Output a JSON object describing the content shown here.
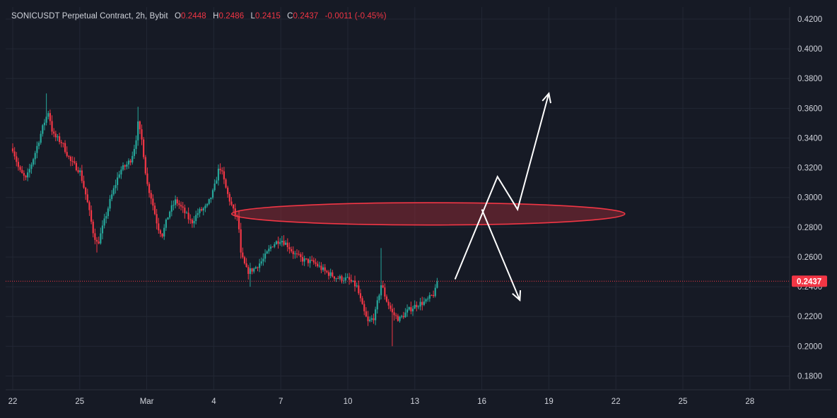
{
  "header": {
    "symbol": "SONICUSDT Perpetual Contract, 2h, Bybit",
    "open_label": "O",
    "open": "0.2448",
    "high_label": "H",
    "high": "0.2486",
    "low_label": "L",
    "low": "0.2415",
    "close_label": "C",
    "close": "0.2437",
    "change": "-0.0011 (-0.45%)"
  },
  "colors": {
    "background": "#161a25",
    "grid": "#222734",
    "up": "#26a69a",
    "down": "#f23645",
    "text": "#d1d4dc",
    "arrow": "#ffffff",
    "zone_fill": "#8a2a35",
    "zone_stroke": "#f23645"
  },
  "chart_data": {
    "type": "candlestick",
    "y_axis_side": "right",
    "ylim": [
      0.17,
      0.425
    ],
    "y_ticks": [
      "0.4200",
      "0.4000",
      "0.3800",
      "0.3600",
      "0.3400",
      "0.3200",
      "0.3000",
      "0.2800",
      "0.2600",
      "0.2400",
      "0.2200",
      "0.2000",
      "0.1800"
    ],
    "x_ticks": [
      "22",
      "25",
      "Mar",
      "4",
      "7",
      "10",
      "13",
      "16",
      "19",
      "22",
      "25",
      "28"
    ],
    "x_tick_days": [
      0,
      3,
      6,
      9,
      12,
      15,
      18,
      21,
      24,
      27,
      30,
      33
    ],
    "last_price": "0.2437",
    "last_price_value": 0.2437,
    "price_path": [
      [
        0.0,
        0.333
      ],
      [
        0.3,
        0.318
      ],
      [
        0.6,
        0.312
      ],
      [
        1.0,
        0.33
      ],
      [
        1.3,
        0.345
      ],
      [
        1.4,
        0.35
      ],
      [
        1.6,
        0.358
      ],
      [
        1.8,
        0.342
      ],
      [
        2.2,
        0.337
      ],
      [
        2.6,
        0.324
      ],
      [
        3.0,
        0.318
      ],
      [
        3.3,
        0.3
      ],
      [
        3.6,
        0.277
      ],
      [
        3.8,
        0.268
      ],
      [
        4.1,
        0.284
      ],
      [
        4.4,
        0.3
      ],
      [
        4.8,
        0.318
      ],
      [
        5.1,
        0.322
      ],
      [
        5.3,
        0.326
      ],
      [
        5.5,
        0.337
      ],
      [
        5.6,
        0.35
      ],
      [
        5.8,
        0.337
      ],
      [
        6.0,
        0.31
      ],
      [
        6.2,
        0.3
      ],
      [
        6.5,
        0.28
      ],
      [
        6.7,
        0.275
      ],
      [
        7.0,
        0.29
      ],
      [
        7.3,
        0.298
      ],
      [
        7.6,
        0.292
      ],
      [
        8.0,
        0.283
      ],
      [
        8.3,
        0.29
      ],
      [
        8.7,
        0.294
      ],
      [
        9.0,
        0.305
      ],
      [
        9.2,
        0.318
      ],
      [
        9.3,
        0.32
      ],
      [
        9.6,
        0.303
      ],
      [
        9.9,
        0.29
      ],
      [
        10.1,
        0.285
      ],
      [
        10.2,
        0.262
      ],
      [
        10.5,
        0.25
      ],
      [
        10.8,
        0.252
      ],
      [
        11.2,
        0.258
      ],
      [
        11.6,
        0.268
      ],
      [
        12.0,
        0.272
      ],
      [
        12.3,
        0.268
      ],
      [
        12.6,
        0.262
      ],
      [
        13.0,
        0.258
      ],
      [
        13.5,
        0.256
      ],
      [
        14.0,
        0.25
      ],
      [
        14.5,
        0.246
      ],
      [
        15.0,
        0.245
      ],
      [
        15.4,
        0.24
      ],
      [
        15.7,
        0.224
      ],
      [
        15.9,
        0.216
      ],
      [
        16.2,
        0.22
      ],
      [
        16.4,
        0.235
      ],
      [
        16.5,
        0.242
      ],
      [
        16.7,
        0.232
      ],
      [
        17.0,
        0.222
      ],
      [
        17.3,
        0.218
      ],
      [
        17.7,
        0.224
      ],
      [
        18.1,
        0.228
      ],
      [
        18.5,
        0.23
      ],
      [
        18.9,
        0.236
      ],
      [
        19.0,
        0.244
      ]
    ],
    "notable_wicks": [
      {
        "day": 1.5,
        "high": 0.37
      },
      {
        "day": 5.6,
        "high": 0.361
      },
      {
        "day": 3.8,
        "low": 0.263
      },
      {
        "day": 9.3,
        "high": 0.323
      },
      {
        "day": 10.6,
        "low": 0.24
      },
      {
        "day": 16.5,
        "high": 0.266
      },
      {
        "day": 17.0,
        "low": 0.2
      }
    ],
    "annotations": [
      {
        "type": "ellipse",
        "label": "resistance-zone",
        "day_start": 9.8,
        "day_end": 27.4,
        "price_top": 0.2965,
        "price_bottom": 0.2815
      },
      {
        "type": "arrow",
        "label": "bullish-scenario",
        "points": [
          [
            19.8,
            0.245
          ],
          [
            21.7,
            0.314
          ],
          [
            22.6,
            0.292
          ],
          [
            24.0,
            0.37
          ]
        ]
      },
      {
        "type": "arrow",
        "label": "bearish-scenario",
        "points": [
          [
            21.0,
            0.292
          ],
          [
            22.7,
            0.231
          ]
        ]
      }
    ]
  }
}
